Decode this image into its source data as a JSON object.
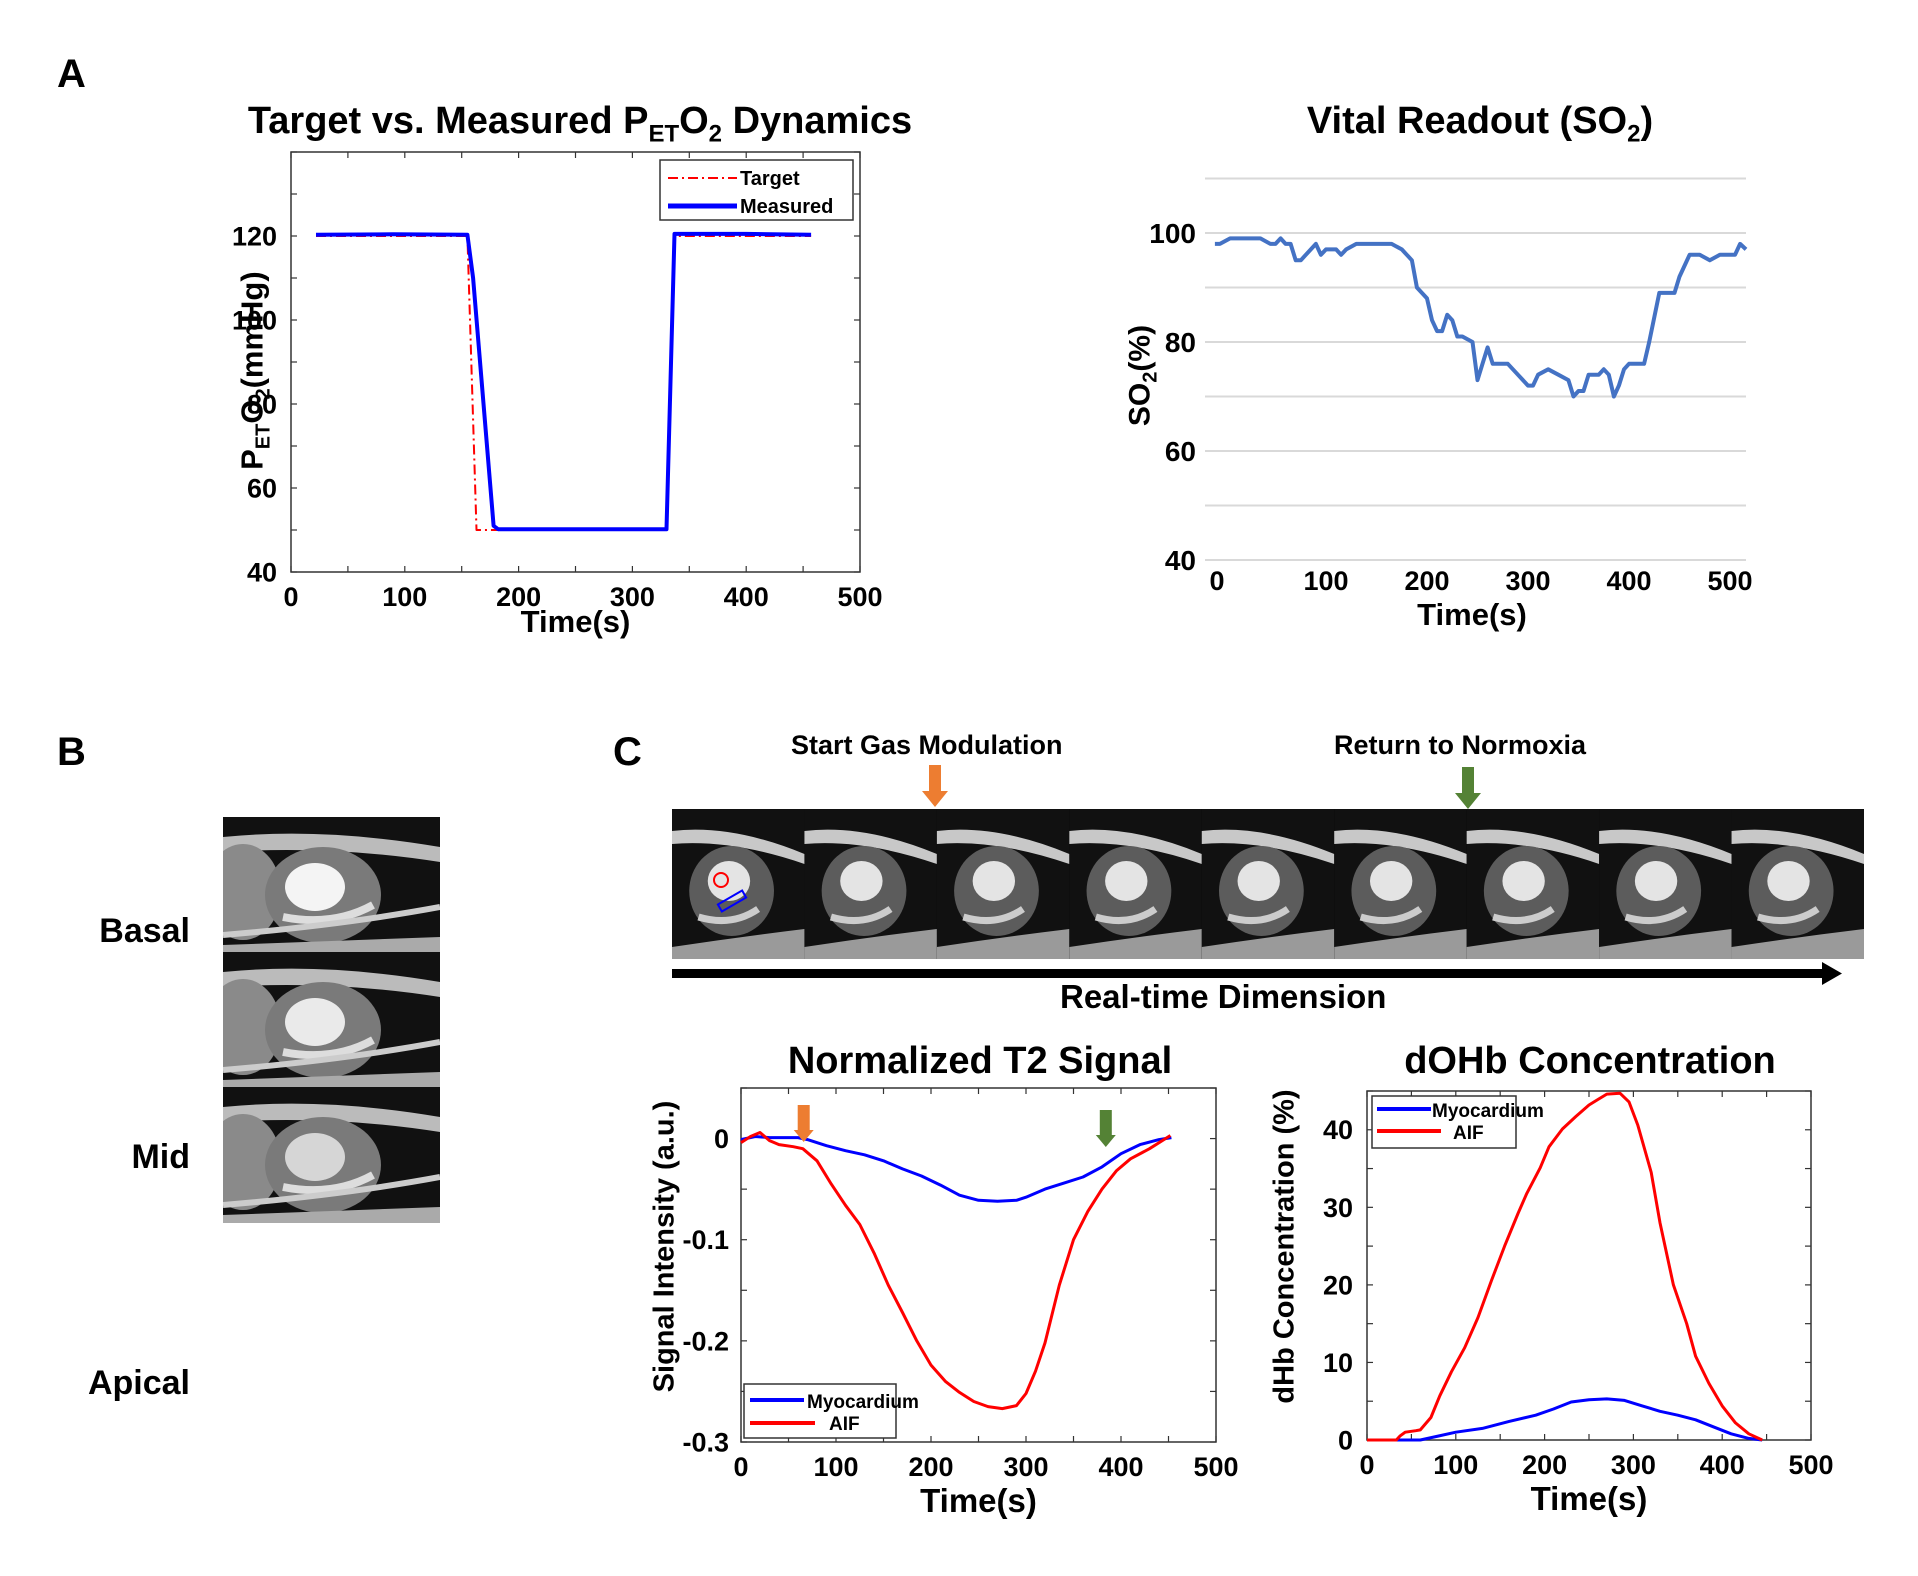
{
  "panels": {
    "A": "A",
    "B": "B",
    "C": "C"
  },
  "panel_b": {
    "row_labels": [
      "Basal",
      "Mid",
      "Apical"
    ]
  },
  "panel_c": {
    "annotations": {
      "start": "Start Gas Modulation",
      "end": "Return to Normoxia"
    },
    "axis_caption": "Real-time Dimension",
    "frame_count": 9,
    "colors": {
      "start_arrow": "#ED7D31",
      "end_arrow": "#548235",
      "roi_blood": "#ff0000",
      "roi_myo": "#0000ff"
    }
  },
  "chart_data": [
    {
      "id": "peto2",
      "type": "line",
      "title": "Target vs. Measured P_ET O_2 Dynamics",
      "title_parts": {
        "main": "Target vs. Measured P",
        "sub1": "ET",
        "mid": "O",
        "sub2": "2",
        "end": " Dynamics"
      },
      "xlabel": "Time(s)",
      "ylabel": "P_ET O_2(mmHg)",
      "ylabel_parts": {
        "main": "P",
        "sub1": "ET",
        "mid": "O",
        "sub2": "2",
        "end": "(mmHg)"
      },
      "xlim": [
        0,
        500
      ],
      "ylim": [
        40,
        140
      ],
      "xticks": [
        0,
        100,
        200,
        300,
        400,
        500
      ],
      "yticks": [
        40,
        60,
        80,
        100,
        120
      ],
      "legend": "top-right",
      "series": [
        {
          "name": "Target",
          "color": "#ff0000",
          "style": "dashdot",
          "x": [
            22,
            155,
            163,
            170,
            330,
            337,
            457
          ],
          "y": [
            120,
            120,
            50,
            50,
            50,
            120,
            120
          ]
        },
        {
          "name": "Measured",
          "color": "#0000ff",
          "style": "solid",
          "x": [
            22,
            90,
            155,
            160,
            178,
            182,
            330,
            337,
            400,
            457
          ],
          "y": [
            120.3,
            120.4,
            120.3,
            110,
            51,
            50.2,
            50.2,
            120.5,
            120.5,
            120.3
          ]
        }
      ]
    },
    {
      "id": "so2",
      "type": "line",
      "title": "Vital Readout (SO_2)",
      "title_parts": {
        "main": "Vital Readout (SO",
        "sub": "2",
        "end": ")"
      },
      "xlabel": "Time(s)",
      "ylabel": "SO_2(%)",
      "ylabel_parts": {
        "main": "SO",
        "sub": "2",
        "end": "(%)"
      },
      "xlim": [
        -10,
        520
      ],
      "ylim": [
        40,
        110
      ],
      "xticks": [
        0,
        100,
        200,
        300,
        400,
        500
      ],
      "yticks": [
        40,
        60,
        80,
        100
      ],
      "grid": true,
      "series": [
        {
          "name": "SO2",
          "color": "#4472C4",
          "x": [
            -10,
            -5,
            5,
            15,
            25,
            35,
            45,
            50,
            55,
            60,
            65,
            70,
            75,
            80,
            90,
            95,
            100,
            110,
            115,
            120,
            130,
            140,
            150,
            160,
            165,
            175,
            180,
            185,
            190,
            200,
            205,
            210,
            215,
            220,
            225,
            230,
            235,
            245,
            250,
            255,
            260,
            265,
            270,
            280,
            290,
            300,
            305,
            310,
            320,
            330,
            340,
            345,
            350,
            355,
            360,
            370,
            375,
            380,
            385,
            390,
            395,
            400,
            410,
            415,
            420,
            430,
            440,
            445,
            450,
            460,
            465,
            470,
            480,
            490,
            500,
            505,
            510,
            520
          ],
          "y": [
            98,
            98,
            99,
            99,
            99,
            99,
            98,
            98,
            99,
            98,
            98,
            95,
            95,
            96,
            98,
            96,
            97,
            97,
            96,
            97,
            98,
            98,
            98,
            98,
            98,
            97,
            96,
            95,
            90,
            88,
            84,
            82,
            82,
            85,
            84,
            81,
            81,
            80,
            73,
            76,
            79,
            76,
            76,
            76,
            74,
            72,
            72,
            74,
            75,
            74,
            73,
            70,
            71,
            71,
            74,
            74,
            75,
            74,
            70,
            72,
            75,
            76,
            76,
            76,
            80,
            89,
            89,
            89,
            92,
            96,
            96,
            96,
            95,
            96,
            96,
            96,
            98,
            97
          ]
        }
      ]
    },
    {
      "id": "t2signal",
      "type": "line",
      "title": "Normalized T2 Signal",
      "xlabel": "Time(s)",
      "ylabel": "Signal Intensity (a.u.)",
      "xlim": [
        0,
        500
      ],
      "ylim": [
        -0.3,
        0.05
      ],
      "xticks": [
        0,
        100,
        200,
        300,
        400,
        500
      ],
      "yticks": [
        -0.3,
        -0.2,
        -0.1,
        0
      ],
      "ytick_labels": [
        "-0.3",
        "-0.2",
        "-0.1",
        "0"
      ],
      "legend": "bottom-left",
      "annotations": [
        {
          "x": 66,
          "color": "#ED7D31"
        },
        {
          "x": 384,
          "color": "#548235"
        }
      ],
      "series": [
        {
          "name": "Myocardium",
          "color": "#0000ff",
          "x": [
            0,
            15,
            30,
            45,
            60,
            70,
            90,
            110,
            130,
            150,
            170,
            190,
            210,
            230,
            250,
            270,
            290,
            300,
            320,
            340,
            360,
            380,
            400,
            420,
            440,
            453
          ],
          "y": [
            -0.001,
            0.002,
            0.001,
            0.001,
            0.001,
            -0.001,
            -0.007,
            -0.012,
            -0.016,
            -0.022,
            -0.03,
            -0.037,
            -0.046,
            -0.056,
            -0.061,
            -0.062,
            -0.061,
            -0.058,
            -0.05,
            -0.044,
            -0.038,
            -0.028,
            -0.015,
            -0.006,
            -0.001,
            0.001
          ]
        },
        {
          "name": "AIF",
          "color": "#ff0000",
          "x": [
            0,
            10,
            20,
            30,
            40,
            55,
            65,
            80,
            95,
            110,
            125,
            140,
            155,
            170,
            185,
            200,
            215,
            230,
            245,
            260,
            275,
            290,
            300,
            310,
            320,
            335,
            350,
            365,
            380,
            395,
            410,
            430,
            452
          ],
          "y": [
            -0.004,
            0.002,
            0.006,
            -0.002,
            -0.006,
            -0.008,
            -0.01,
            -0.022,
            -0.045,
            -0.066,
            -0.085,
            -0.113,
            -0.145,
            -0.172,
            -0.2,
            -0.224,
            -0.24,
            -0.251,
            -0.26,
            -0.265,
            -0.267,
            -0.264,
            -0.252,
            -0.23,
            -0.202,
            -0.145,
            -0.1,
            -0.072,
            -0.05,
            -0.032,
            -0.02,
            -0.01,
            0.003
          ]
        }
      ]
    },
    {
      "id": "dohb",
      "type": "line",
      "title": "dOHb Concentration",
      "xlabel": "Time(s)",
      "ylabel": "dHb Concentration (%)",
      "xlim": [
        0,
        500
      ],
      "ylim": [
        0,
        45
      ],
      "xticks": [
        0,
        100,
        200,
        300,
        400,
        500
      ],
      "yticks": [
        0,
        10,
        20,
        30,
        40
      ],
      "legend": "top-left",
      "series": [
        {
          "name": "Myocardium",
          "color": "#0000ff",
          "x": [
            0,
            60,
            80,
            100,
            130,
            160,
            190,
            210,
            230,
            250,
            270,
            290,
            310,
            330,
            350,
            370,
            390,
            410,
            430,
            445
          ],
          "y": [
            0,
            0,
            0.5,
            1.0,
            1.5,
            2.4,
            3.2,
            4.0,
            4.9,
            5.2,
            5.3,
            5.1,
            4.4,
            3.7,
            3.2,
            2.6,
            1.7,
            0.8,
            0.2,
            0
          ]
        },
        {
          "name": "AIF",
          "color": "#ff0000",
          "x": [
            0,
            33,
            37,
            43,
            55,
            60,
            72,
            82,
            95,
            110,
            125,
            140,
            155,
            170,
            180,
            195,
            205,
            220,
            235,
            250,
            260,
            270,
            285,
            295,
            305,
            320,
            330,
            345,
            360,
            370,
            385,
            400,
            415,
            430,
            445
          ],
          "y": [
            0,
            0,
            0.5,
            1.0,
            1.2,
            1.3,
            2.9,
            5.7,
            8.8,
            11.9,
            15.8,
            20.5,
            25.0,
            29.2,
            31.8,
            35.1,
            37.8,
            40.1,
            41.7,
            43.2,
            43.9,
            44.6,
            44.7,
            43.6,
            40.6,
            34.5,
            28.0,
            20.0,
            15.0,
            10.8,
            7.3,
            4.4,
            2.2,
            0.8,
            0
          ]
        }
      ]
    }
  ]
}
